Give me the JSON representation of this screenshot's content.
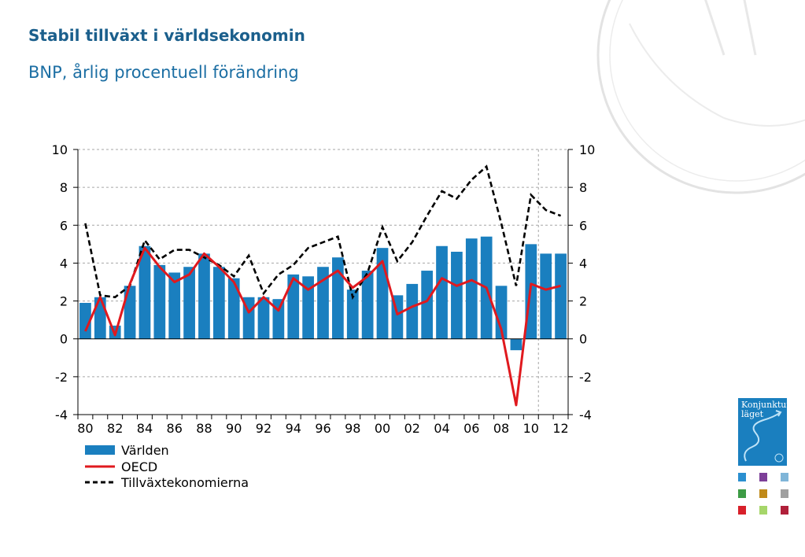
{
  "title": "Stabil tillväxt i världsekonomin",
  "subtitle": "BNP, årlig procentuell förändring",
  "logo": {
    "line1": "Konjunktur",
    "line2": "läget"
  },
  "colors": {
    "bar": "#1a7fbf",
    "oecd": "#e0191e",
    "emerging": "#000000",
    "title": "#1b5f8c",
    "grid": "#a6a6a6",
    "swatches": [
      "#2a8fd0",
      "#7d3f98",
      "#7fb5d8",
      "#3d9b45",
      "#c08a1a",
      "#a0a0a0",
      "#d8202a",
      "#a6d66a",
      "#b0203a"
    ]
  },
  "chart_data": {
    "type": "bar",
    "x": [
      1980,
      1981,
      1982,
      1983,
      1984,
      1985,
      1986,
      1987,
      1988,
      1989,
      1990,
      1991,
      1992,
      1993,
      1994,
      1995,
      1996,
      1997,
      1998,
      1999,
      2000,
      2001,
      2002,
      2003,
      2004,
      2005,
      2006,
      2007,
      2008,
      2009,
      2010,
      2011,
      2012
    ],
    "x_tick_labels": [
      "80",
      "82",
      "84",
      "86",
      "88",
      "90",
      "92",
      "94",
      "96",
      "98",
      "00",
      "02",
      "04",
      "06",
      "08",
      "10",
      "12"
    ],
    "y_ticks": [
      "-4",
      "-2",
      "0",
      "2",
      "4",
      "6",
      "8",
      "10"
    ],
    "ylim": [
      -4,
      10
    ],
    "forecast_start": 2010.5,
    "grid": true,
    "legend_position": "bottom-left",
    "series": [
      {
        "name": "Världen",
        "kind": "bar",
        "values": [
          1.9,
          2.2,
          0.7,
          2.8,
          4.9,
          3.9,
          3.5,
          3.8,
          4.5,
          3.8,
          3.2,
          2.2,
          2.2,
          2.1,
          3.4,
          3.3,
          3.8,
          4.3,
          2.6,
          3.6,
          4.8,
          2.3,
          2.9,
          3.6,
          4.9,
          4.6,
          5.3,
          5.4,
          2.8,
          -0.6,
          5.0,
          4.5,
          4.5
        ]
      },
      {
        "name": "OECD",
        "kind": "line",
        "values": [
          0.4,
          2.2,
          0.2,
          2.9,
          4.8,
          3.8,
          3.0,
          3.4,
          4.5,
          3.8,
          3.0,
          1.4,
          2.2,
          1.5,
          3.2,
          2.6,
          3.1,
          3.6,
          2.7,
          3.3,
          4.1,
          1.3,
          1.7,
          2.0,
          3.2,
          2.8,
          3.1,
          2.7,
          0.5,
          -3.5,
          2.9,
          2.6,
          2.8
        ]
      },
      {
        "name": "Tillväxtekonomierna",
        "kind": "dashed-line",
        "values": [
          6.1,
          2.3,
          2.2,
          2.8,
          5.2,
          4.2,
          4.7,
          4.7,
          4.3,
          3.9,
          3.3,
          4.4,
          2.4,
          3.4,
          3.9,
          4.8,
          5.1,
          5.4,
          2.2,
          3.5,
          5.9,
          4.1,
          5.1,
          6.5,
          7.8,
          7.4,
          8.4,
          9.1,
          6.1,
          2.8,
          7.6,
          6.8,
          6.5
        ]
      }
    ]
  }
}
